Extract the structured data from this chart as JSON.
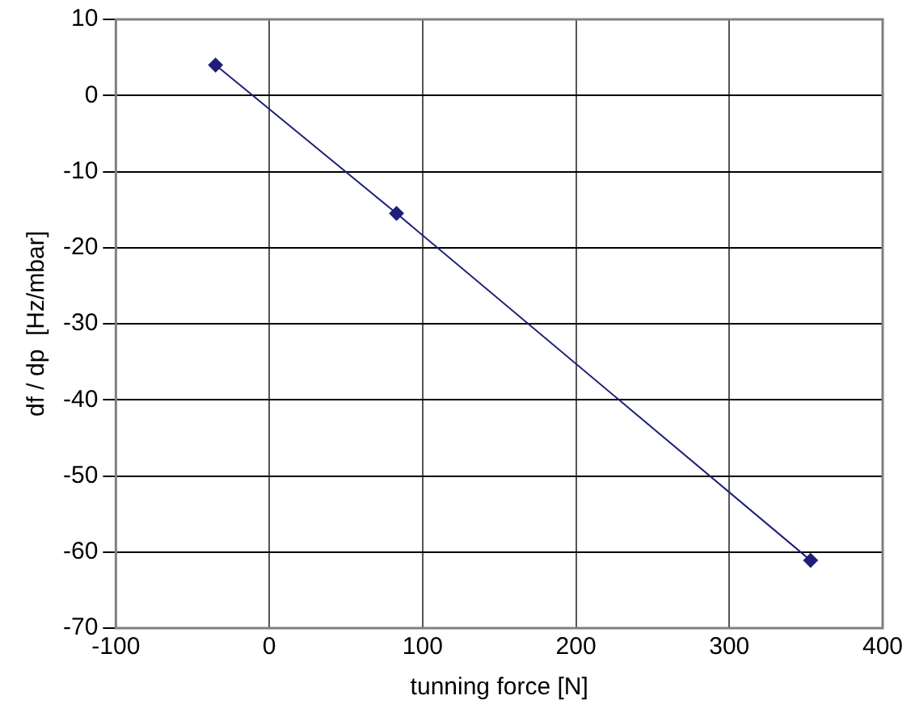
{
  "chart_data": {
    "type": "line",
    "xlabel": "tunning force [N]",
    "ylabel": "df / dp  [Hz/mbar]",
    "x": [
      -35,
      83,
      353
    ],
    "series": [
      {
        "color": "#1f1f7a",
        "values": [
          4.0,
          -15.5,
          -61.1
        ]
      }
    ],
    "xlim": [
      -100,
      400
    ],
    "xticks": [
      -100,
      0,
      100,
      200,
      300,
      400
    ],
    "ylim": [
      -70,
      10
    ],
    "yticks": [
      -70,
      -60,
      -50,
      -40,
      -30,
      -20,
      -10,
      0,
      10
    ],
    "grid": true,
    "legend": false,
    "marker": "diamond",
    "line_style": "solid"
  }
}
